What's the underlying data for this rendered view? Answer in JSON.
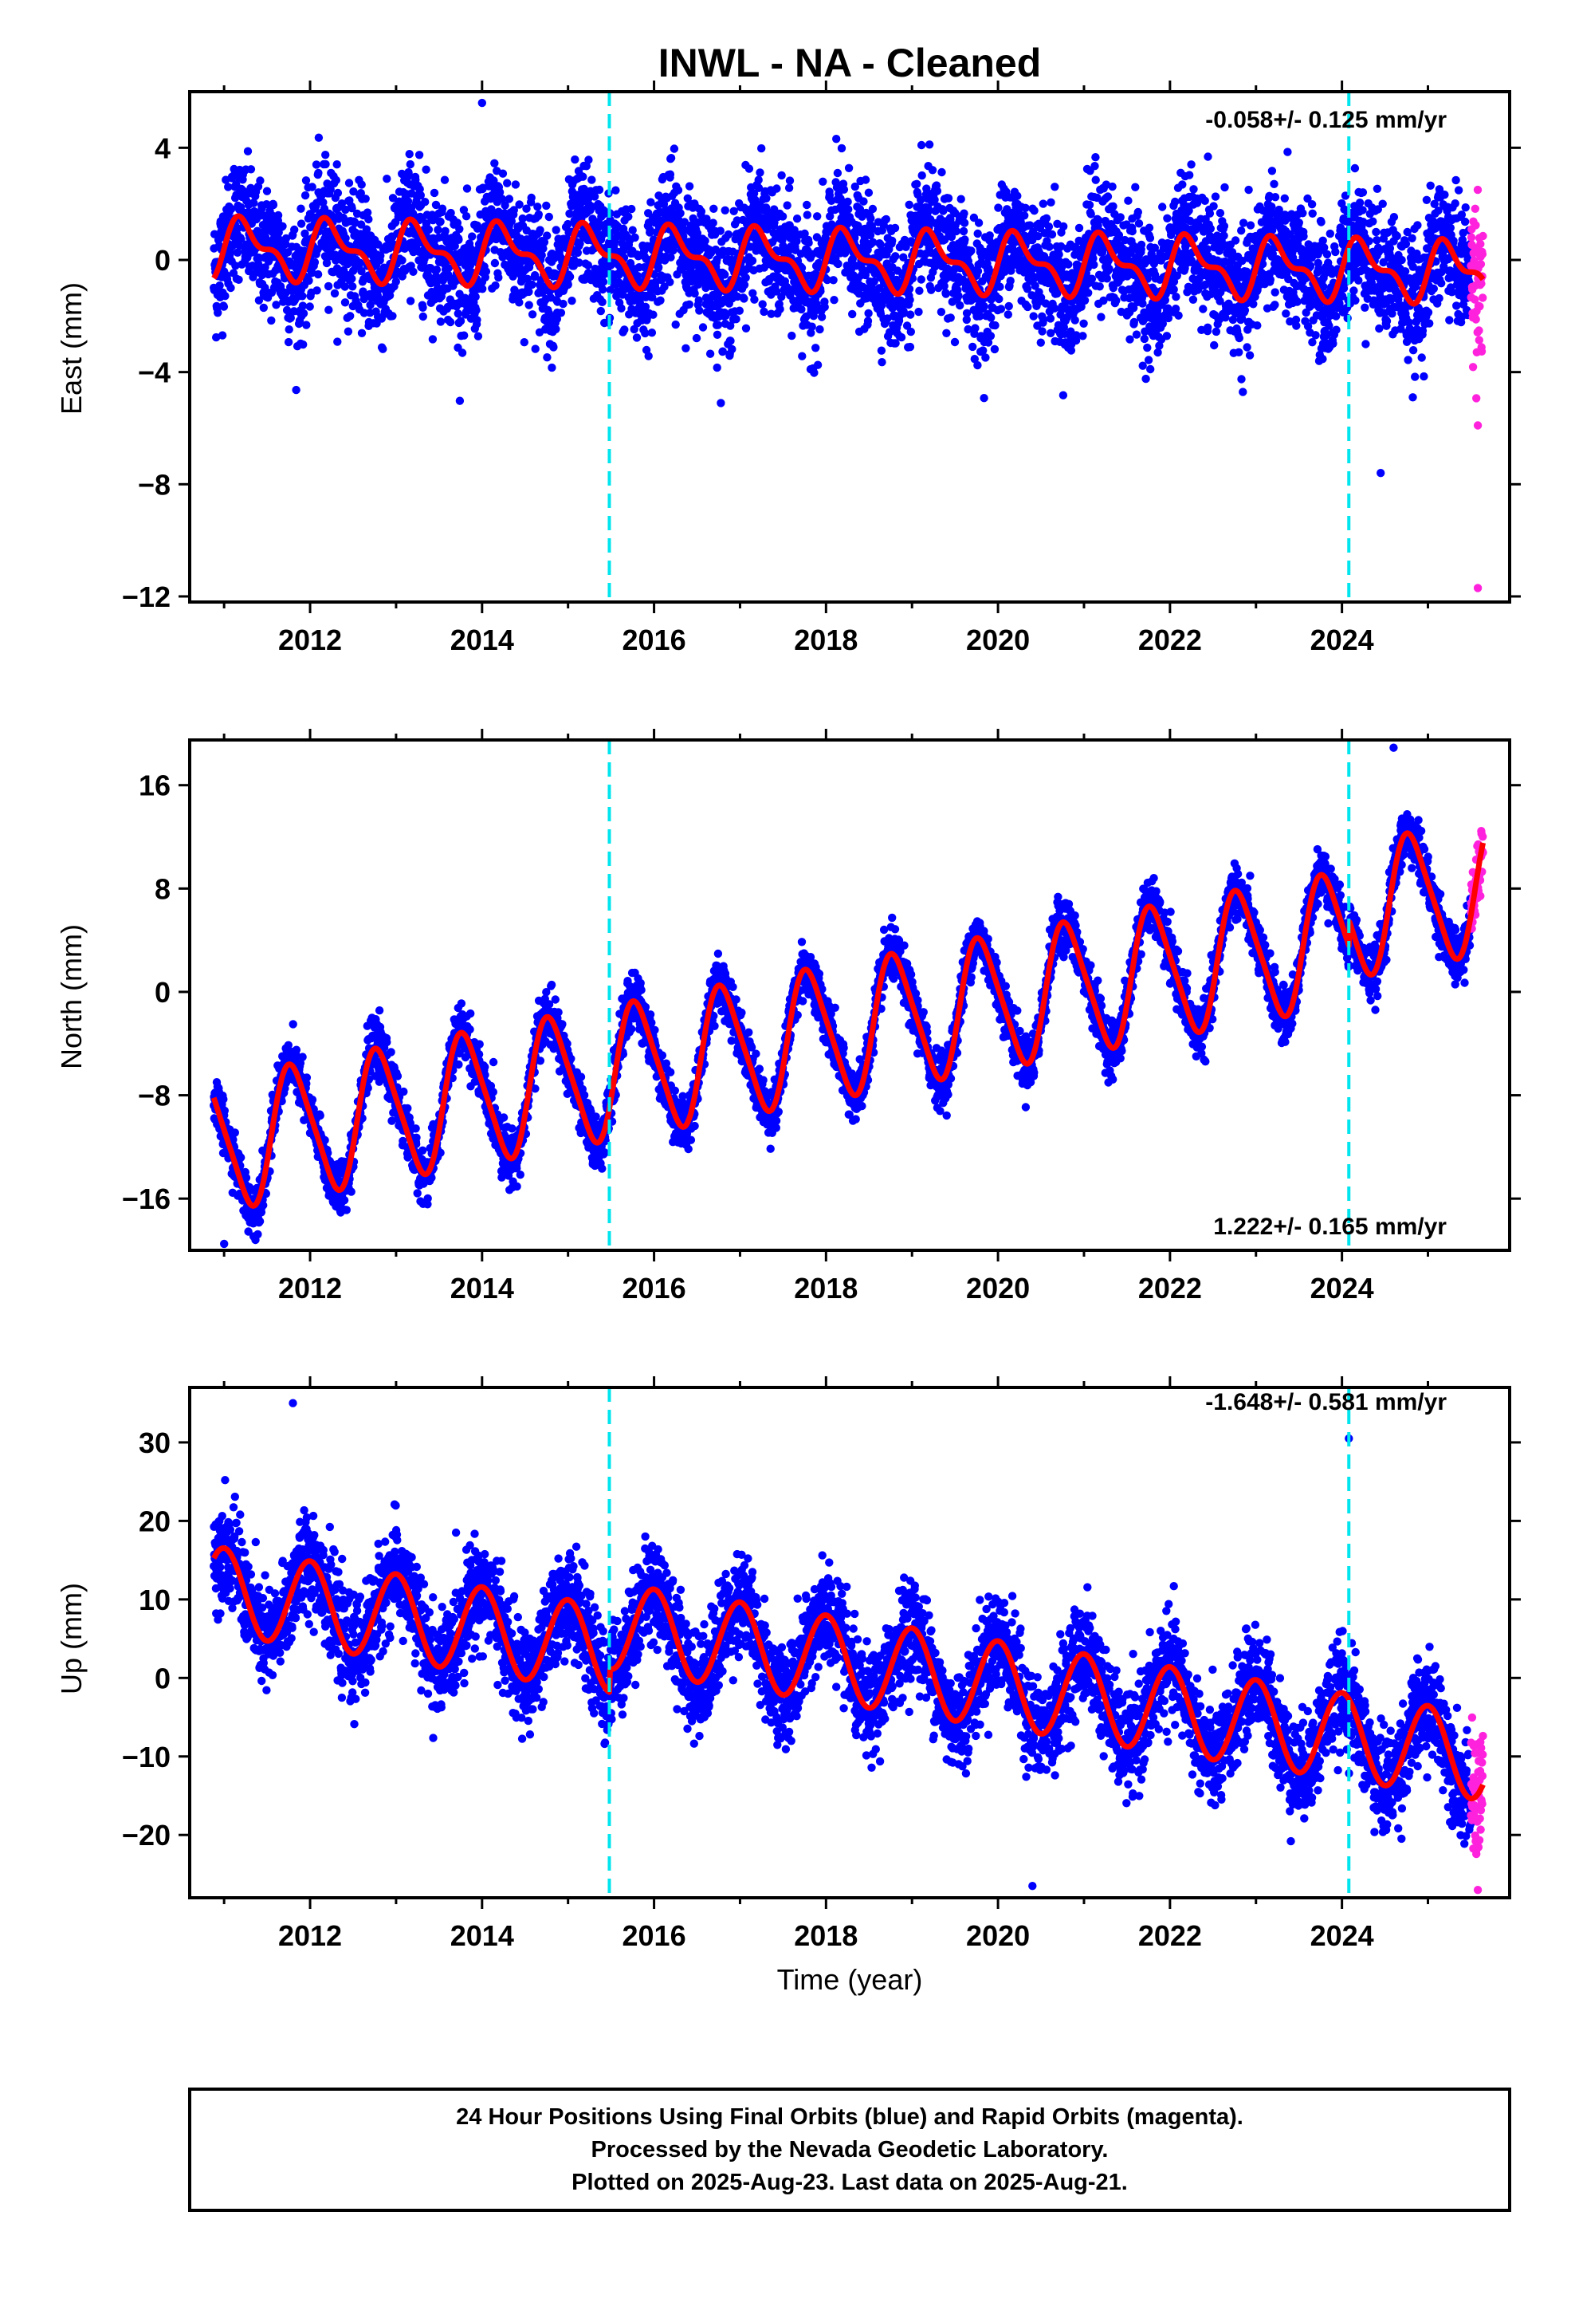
{
  "title": "INWL  - NA - Cleaned",
  "colors": {
    "final_points": "#0000ff",
    "rapid_points": "#ff22dd",
    "model_line": "#ff0000",
    "event_lines": "#00e5ee",
    "frame": "#000000"
  },
  "xlabel": "Time (year)",
  "x_ticks": [
    2012,
    2014,
    2016,
    2018,
    2020,
    2022,
    2024
  ],
  "x_range": [
    2010.6,
    2025.95
  ],
  "caption": {
    "line1": "24 Hour Positions Using Final Orbits (blue) and Rapid Orbits (magenta).",
    "line2": "Processed by the Nevada Geodetic Laboratory.",
    "line3": "Plotted on 2025-Aug-23. Last data on 2025-Aug-21."
  },
  "chart_data": [
    {
      "type": "scatter",
      "name": "east",
      "ylabel": "East (mm)",
      "ylim": [
        -12.2,
        6.0
      ],
      "yticks": [
        4,
        0,
        -4,
        -8,
        -12
      ],
      "rate_text": "-0.058+/- 0.125 mm/yr",
      "rate_position": "top-right",
      "event_lines_x": [
        2015.48,
        2024.08
      ],
      "rapid_window": [
        2025.5,
        2025.64
      ],
      "model": {
        "offset": 0.0,
        "trend": -0.058,
        "annual_amp": 0.9,
        "annual_phase": 0.0,
        "semi_amp": 0.45,
        "semi_phase": 0.0,
        "noise": 1.1,
        "t0": 2018.0,
        "steps": []
      },
      "extremes": [
        [
          2014.0,
          5.6
        ],
        [
          2024.45,
          -7.6
        ],
        [
          2025.58,
          -11.7
        ],
        [
          2025.58,
          -5.9
        ]
      ]
    },
    {
      "type": "scatter",
      "name": "north",
      "ylabel": "North (mm)",
      "ylim": [
        -20.0,
        19.5
      ],
      "yticks": [
        16,
        8,
        0,
        -8,
        -16
      ],
      "rate_text": "1.222+/- 0.165 mm/yr",
      "rate_position": "bottom-right",
      "event_lines_x": [
        2015.48,
        2024.08
      ],
      "rapid_window": [
        2025.5,
        2025.64
      ],
      "model": {
        "offset": -3.2,
        "trend": 1.222,
        "annual_amp": 5.0,
        "annual_phase": 0.55,
        "semi_amp": 0.8,
        "semi_phase": 0.55,
        "noise": 1.0,
        "t0": 2018.0,
        "steps": [
          [
            2024.08,
            2.0
          ]
        ]
      },
      "extremes": [
        [
          2011.0,
          -19.5
        ],
        [
          2024.6,
          18.9
        ]
      ]
    },
    {
      "type": "scatter",
      "name": "up",
      "ylabel": "Up (mm)",
      "ylim": [
        -28.0,
        37.0
      ],
      "yticks": [
        30,
        20,
        10,
        0,
        -10,
        -20
      ],
      "rate_text": "-1.648+/- 0.581 mm/yr",
      "rate_position": "top-right",
      "event_lines_x": [
        2015.48,
        2024.08
      ],
      "rapid_window": [
        2025.5,
        2025.64
      ],
      "model": {
        "offset": -0.5,
        "trend": -1.648,
        "annual_amp": 5.5,
        "annual_phase": 0.75,
        "semi_amp": 0.0,
        "semi_phase": 0.0,
        "noise": 3.2,
        "t0": 2018.0,
        "steps": [
          [
            2015.48,
            3.0
          ]
        ]
      },
      "extremes": [
        [
          2011.8,
          35.0
        ],
        [
          2020.4,
          -26.5
        ],
        [
          2025.58,
          -27.0
        ],
        [
          2024.08,
          30.5
        ]
      ]
    }
  ]
}
